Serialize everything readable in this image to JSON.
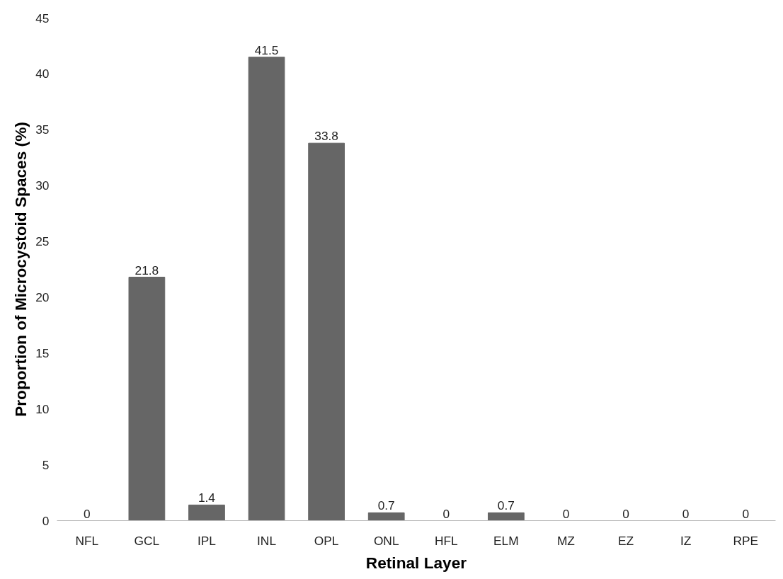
{
  "chart_data": {
    "type": "bar",
    "xlabel": "Retinal Layer",
    "ylabel": "Proportion of Microcystoid Spaces (%)",
    "categories": [
      "NFL",
      "GCL",
      "IPL",
      "INL",
      "OPL",
      "ONL",
      "HFL",
      "ELM",
      "MZ",
      "EZ",
      "IZ",
      "RPE"
    ],
    "values": [
      0,
      21.8,
      1.4,
      41.5,
      33.8,
      0.7,
      0,
      0.7,
      0,
      0,
      0,
      0
    ],
    "color": "#666666",
    "ylim": [
      0,
      45
    ],
    "yticks": [
      0,
      5,
      10,
      15,
      20,
      25,
      30,
      35,
      40,
      45
    ],
    "grid": false,
    "data_labels": true
  }
}
